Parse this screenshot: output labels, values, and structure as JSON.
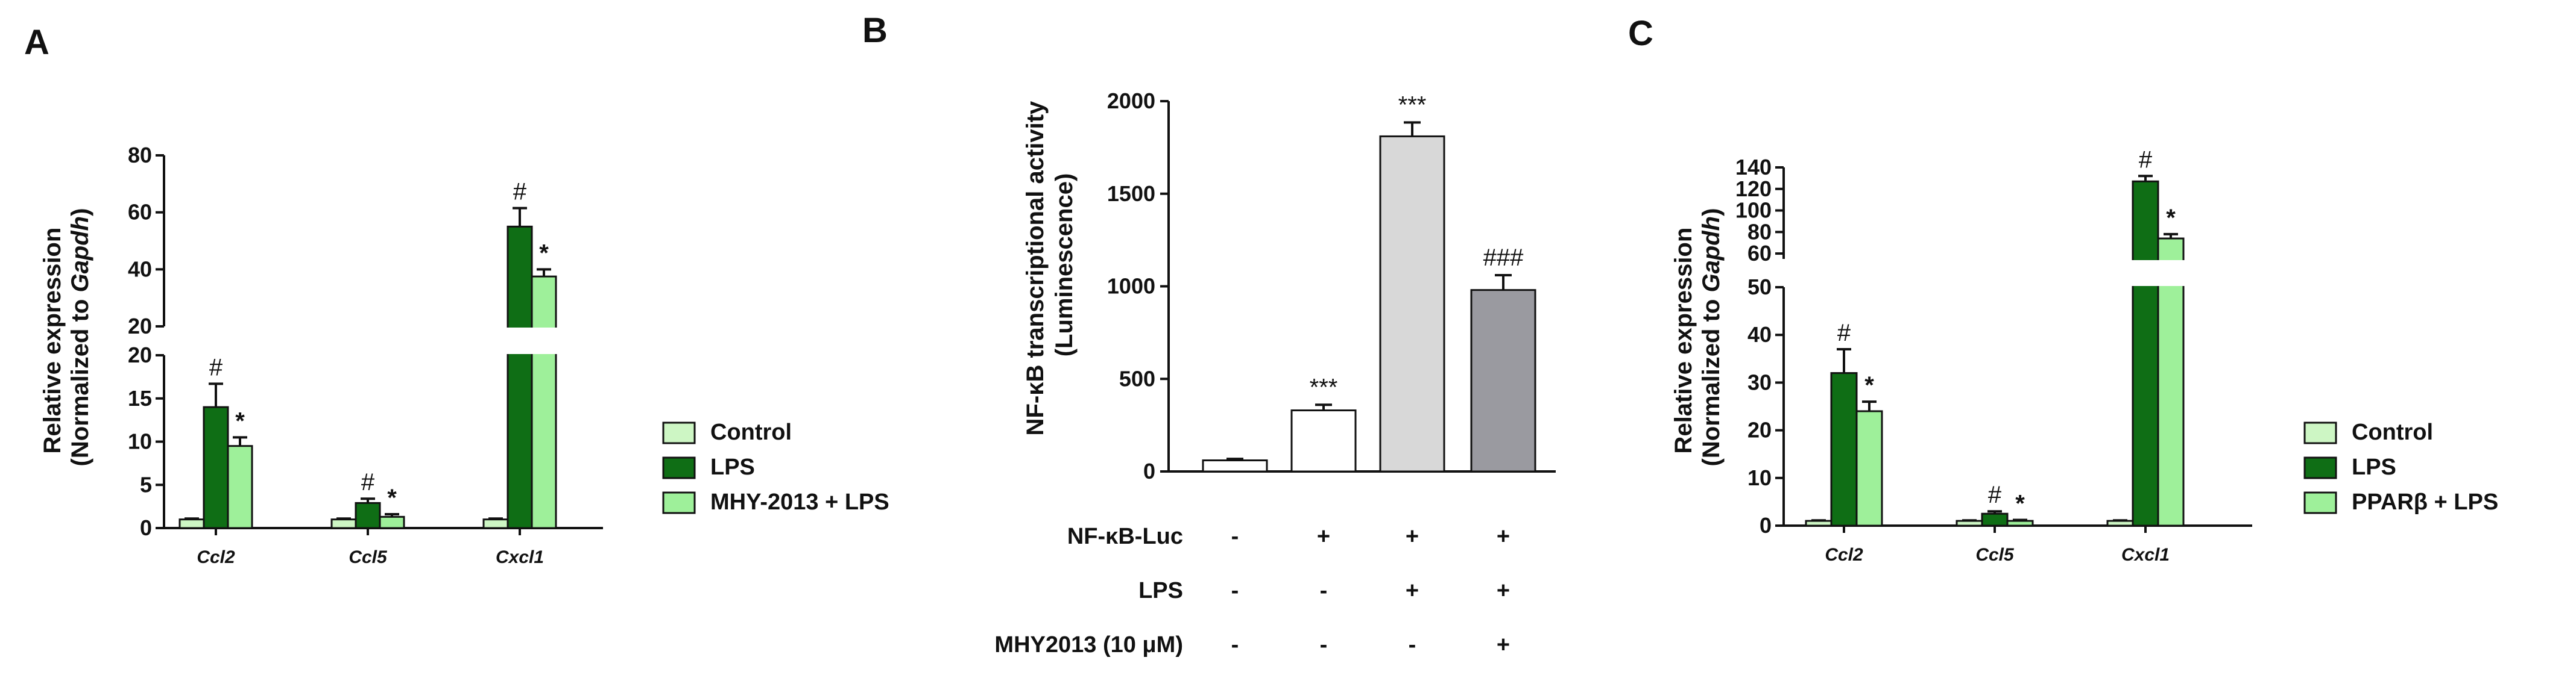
{
  "colors": {
    "control": "#cdf6c4",
    "lps": "#0f6e15",
    "treatment": "#9ef09a",
    "b_bars": [
      "#ffffff",
      "#ffffff",
      "#d8d8d8",
      "#9a9aa0"
    ]
  },
  "chart_data": [
    {
      "panel": "A",
      "type": "bar",
      "ylabel": "Relative expression (Normalized to Gapdh)",
      "ylabel_parts": {
        "prefix": "Relative expression",
        "line2_prefix": "(Normalized to ",
        "line2_italic": "Gapdh",
        "line2_suffix": ")"
      },
      "categories": [
        "Ccl2",
        "Ccl5",
        "Cxcl1"
      ],
      "y_axis_broken": true,
      "y_lower_segment": {
        "range": [
          0,
          20
        ],
        "ticks": [
          "0",
          "5",
          "10",
          "15",
          "20"
        ]
      },
      "y_upper_segment": {
        "range": [
          20,
          80
        ],
        "ticks": [
          "20",
          "40",
          "60",
          "80"
        ]
      },
      "series": [
        {
          "name": "Control",
          "values": [
            1.0,
            1.0,
            1.0
          ],
          "errors": [
            0.1,
            0.1,
            0.1
          ],
          "marks": [
            "",
            "",
            ""
          ]
        },
        {
          "name": "LPS",
          "values": [
            14.0,
            2.9,
            55.0
          ],
          "errors": [
            2.7,
            0.5,
            6.5
          ],
          "marks": [
            "#",
            "#",
            "#"
          ]
        },
        {
          "name": "MHY-2013 + LPS",
          "values": [
            9.5,
            1.3,
            37.5
          ],
          "errors": [
            1.0,
            0.3,
            2.5
          ],
          "marks": [
            "*",
            "*",
            "*"
          ]
        }
      ],
      "legend": [
        "Control",
        "LPS",
        "MHY-2013 + LPS"
      ]
    },
    {
      "panel": "B",
      "type": "bar",
      "ylabel": "NF-κB transcriptional activity (Luminescence)",
      "ylabel_lines": [
        "NF-κB transcriptional activity",
        "(Luminescence)"
      ],
      "ylim": [
        0,
        2000
      ],
      "yticks": [
        "0",
        "500",
        "1000",
        "1500",
        "2000"
      ],
      "values": [
        60,
        330,
        1810,
        980
      ],
      "errors": [
        8,
        30,
        75,
        80
      ],
      "marks": [
        "",
        "***",
        "***",
        "###"
      ],
      "conditions": [
        {
          "label": "NF-κB-Luc",
          "signs": [
            "-",
            "+",
            "+",
            "+"
          ]
        },
        {
          "label": "LPS",
          "signs": [
            "-",
            "-",
            "+",
            "+"
          ]
        },
        {
          "label": "MHY2013 (10 μM)",
          "signs": [
            "-",
            "-",
            "-",
            "+"
          ]
        }
      ]
    },
    {
      "panel": "C",
      "type": "bar",
      "ylabel": "Relative expression (Normalized to Gapdh)",
      "ylabel_parts": {
        "prefix": "Relative expression",
        "line2_prefix": "(Normalized to ",
        "line2_italic": "Gapdh",
        "line2_suffix": ")"
      },
      "categories": [
        "Ccl2",
        "Ccl5",
        "Cxcl1"
      ],
      "y_axis_broken": true,
      "y_lower_segment": {
        "range": [
          0,
          50
        ],
        "ticks": [
          "0",
          "10",
          "20",
          "30",
          "40",
          "50"
        ]
      },
      "y_upper_segment": {
        "range": [
          55,
          140
        ],
        "ticks": [
          "60",
          "80",
          "100",
          "120",
          "140"
        ]
      },
      "series": [
        {
          "name": "Control",
          "values": [
            1.0,
            1.0,
            1.0
          ],
          "errors": [
            0.1,
            0.1,
            0.1
          ],
          "marks": [
            "",
            "",
            ""
          ]
        },
        {
          "name": "LPS",
          "values": [
            32.0,
            2.5,
            127.0
          ],
          "errors": [
            5.0,
            0.5,
            5.0
          ],
          "marks": [
            "#",
            "#",
            "#"
          ]
        },
        {
          "name": "PPARβ + LPS",
          "values": [
            24.0,
            1.0,
            74.0
          ],
          "errors": [
            2.0,
            0.2,
            4.0
          ],
          "marks": [
            "*",
            "*",
            "*"
          ]
        }
      ],
      "legend": [
        "Control",
        "LPS",
        "PPARβ + LPS"
      ]
    }
  ]
}
